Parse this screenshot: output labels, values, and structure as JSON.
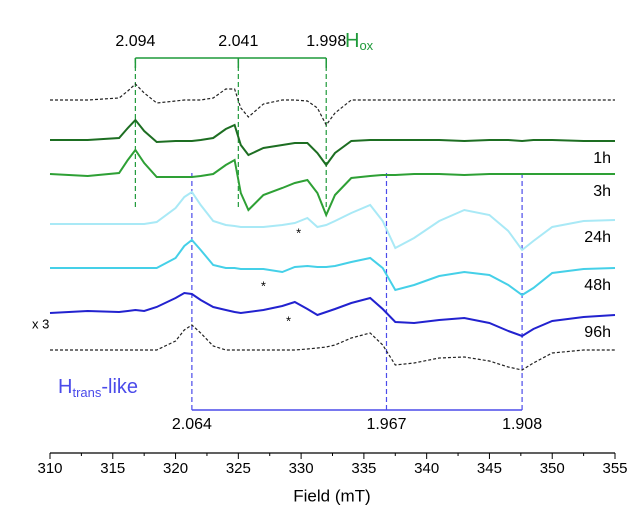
{
  "chart_data": {
    "type": "line",
    "x_label": "Field (mT)",
    "xlim": [
      310,
      355
    ],
    "xticks": [
      310,
      315,
      320,
      325,
      330,
      335,
      340,
      345,
      350,
      355
    ],
    "ylim": [
      0,
      450
    ],
    "x": [
      310,
      313,
      315.5,
      316.2,
      316.8,
      317.5,
      318.5,
      320,
      320.7,
      321.3,
      322,
      323,
      324,
      324.7,
      325.2,
      325.8,
      327,
      328.5,
      329.5,
      330.5,
      331.3,
      332,
      332.7,
      334,
      335.5,
      336.5,
      337.5,
      339,
      341,
      343,
      345,
      346.5,
      347.6,
      348.5,
      350,
      352.5,
      355
    ],
    "series": [
      {
        "name": null,
        "color": "#222222",
        "dashed": true,
        "values": [
          353,
          353,
          355,
          362,
          369,
          360,
          350,
          352,
          353,
          353,
          353,
          355,
          364,
          364,
          345,
          336,
          349,
          353,
          353,
          352,
          345,
          328,
          340,
          353,
          353,
          353,
          353,
          353,
          353,
          353,
          353,
          353,
          353,
          353,
          353,
          353,
          353
        ]
      },
      {
        "name": "1h",
        "color": "#1d6e22",
        "dashed": false,
        "values": [
          313,
          313,
          315,
          325,
          333,
          322,
          311,
          312,
          312,
          312,
          313,
          315,
          324,
          328,
          308,
          298,
          305,
          308,
          310,
          310,
          300,
          288,
          300,
          312,
          313,
          313,
          313,
          313,
          313,
          312,
          313,
          313,
          312,
          313,
          313,
          312,
          312
        ]
      },
      {
        "name": "3h",
        "color": "#2ea035",
        "dashed": false,
        "values": [
          279,
          277,
          280,
          293,
          303,
          290,
          276,
          276,
          276,
          276,
          277,
          279,
          288,
          293,
          260,
          243,
          258,
          265,
          270,
          273,
          260,
          238,
          258,
          275,
          277,
          278,
          278,
          279,
          279,
          278,
          279,
          279,
          279,
          279,
          279,
          279,
          279
        ]
      },
      {
        "name": "24h",
        "color": "#a9e9f6",
        "dashed": false,
        "values": [
          229,
          229,
          229,
          229,
          229,
          229,
          231,
          245,
          256,
          261,
          248,
          232,
          228,
          227,
          226,
          226,
          226,
          228,
          230,
          235,
          226,
          228,
          232,
          240,
          248,
          232,
          205,
          215,
          232,
          243,
          238,
          222,
          203,
          212,
          226,
          232,
          233
        ]
      },
      {
        "name": "48h",
        "color": "#45d0e8",
        "dashed": false,
        "values": [
          185,
          185,
          185,
          185,
          185,
          185,
          185,
          195,
          207,
          213,
          203,
          188,
          185,
          185,
          184,
          184,
          184,
          181,
          186,
          187,
          186,
          186,
          187,
          191,
          195,
          185,
          163,
          168,
          177,
          181,
          178,
          168,
          158,
          165,
          180,
          184,
          185
        ]
      },
      {
        "name": "96h",
        "color": "#2222cf",
        "dashed": false,
        "note_label": "x 3",
        "values": [
          140,
          142,
          141,
          142,
          143,
          142,
          146,
          155,
          160,
          159,
          153,
          146,
          143,
          141,
          140,
          141,
          143,
          147,
          151,
          144,
          138,
          141,
          144,
          150,
          155,
          144,
          131,
          130,
          133,
          135,
          130,
          122,
          117,
          124,
          132,
          136,
          138
        ]
      },
      {
        "name": null,
        "color": "#222222",
        "dashed": true,
        "values": [
          103,
          103,
          103,
          103,
          103,
          103,
          103,
          112,
          123,
          128,
          120,
          107,
          103,
          103,
          103,
          103,
          103,
          103,
          103,
          104,
          105,
          106,
          108,
          115,
          120,
          108,
          88,
          90,
          95,
          96,
          92,
          86,
          83,
          90,
          100,
          103,
          103
        ]
      }
    ],
    "annotations": [
      {
        "label": "*",
        "x": 329.8,
        "y": 223
      },
      {
        "label": "*",
        "x": 327.0,
        "y": 170
      },
      {
        "label": "*",
        "x": 329.0,
        "y": 135
      }
    ],
    "hox": {
      "label": "H",
      "sub": "ox",
      "color": "#1f9a3a",
      "g_values": [
        {
          "label": "2.094",
          "x": 316.8
        },
        {
          "label": "2.041",
          "x": 325.0
        },
        {
          "label": "1.998",
          "x": 332.0
        }
      ]
    },
    "htrans": {
      "label": "H",
      "sub": "trans",
      "suffix": "-like",
      "color": "#4b4bea",
      "g_values": [
        {
          "label": "2.064",
          "x": 321.3
        },
        {
          "label": "1.967",
          "x": 336.8
        },
        {
          "label": "1.908",
          "x": 347.6
        }
      ]
    }
  }
}
